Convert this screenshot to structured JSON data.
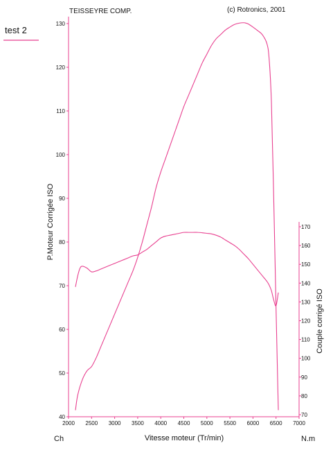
{
  "header": {
    "company": "TEISSEYRE COMP.",
    "copyright": "(c) Rotronics, 2001",
    "note": "test 2"
  },
  "colors": {
    "accent": "#e83f8f",
    "text": "#111111"
  },
  "chart_data": {
    "type": "line",
    "title": "",
    "xlabel": "Vitesse moteur (Tr/min)",
    "ylabel_left": "P.Moteur Corrigée ISO",
    "ylabel_right": "Couple corrigé ISO",
    "left_unit": "Ch",
    "right_unit": "N.m",
    "xlim": [
      2000,
      7000
    ],
    "ylim_left": [
      40,
      130
    ],
    "ylim_right": [
      70,
      170
    ],
    "x_ticks": [
      2000,
      2500,
      3000,
      3500,
      4000,
      4500,
      5000,
      5500,
      6000,
      6500,
      7000
    ],
    "left_ticks": [
      40,
      50,
      60,
      70,
      80,
      90,
      100,
      110,
      120,
      130
    ],
    "right_ticks": [
      70,
      80,
      90,
      100,
      110,
      120,
      130,
      140,
      150,
      160,
      170
    ],
    "grid": false,
    "series": [
      {
        "axis": "left",
        "x": [
          2150,
          2200,
          2300,
          2400,
          2500,
          2600,
          2700,
          2800,
          2900,
          3000,
          3100,
          3200,
          3300,
          3400,
          3500,
          3600,
          3700,
          3800,
          3900,
          4000,
          4100,
          4200,
          4300,
          4400,
          4500,
          4600,
          4700,
          4800,
          4900,
          5000,
          5100,
          5200,
          5300,
          5400,
          5500,
          5600,
          5700,
          5800,
          5850,
          5900,
          6000,
          6100,
          6200,
          6300,
          6350,
          6400,
          6450,
          6500,
          6550
        ],
        "values": [
          41.5,
          45,
          48.5,
          50.5,
          51.5,
          53.5,
          56,
          58.5,
          61,
          63.5,
          66,
          68.5,
          71,
          73.5,
          76.5,
          80,
          84,
          88,
          92.5,
          96,
          99,
          102,
          105,
          108,
          111,
          113.5,
          116,
          118.5,
          121,
          123,
          125,
          126.5,
          127.5,
          128.5,
          129.2,
          129.8,
          130.1,
          130.2,
          130.1,
          129.9,
          129.2,
          128.4,
          127.5,
          125.5,
          122,
          112,
          90,
          65,
          41.5
        ]
      },
      {
        "axis": "right",
        "x": [
          2150,
          2200,
          2250,
          2300,
          2400,
          2500,
          2600,
          2700,
          2800,
          2900,
          3000,
          3100,
          3200,
          3300,
          3400,
          3500,
          3600,
          3700,
          3800,
          3900,
          4000,
          4100,
          4200,
          4300,
          4400,
          4500,
          4600,
          4700,
          4800,
          4900,
          5000,
          5100,
          5200,
          5300,
          5400,
          5500,
          5600,
          5700,
          5800,
          5900,
          6000,
          6100,
          6200,
          6300,
          6350,
          6400,
          6450,
          6500,
          6550
        ],
        "values": [
          138,
          144,
          148,
          149,
          148,
          146,
          146.5,
          147.5,
          148.5,
          149.5,
          150.5,
          151.5,
          152.5,
          153.5,
          154.5,
          155,
          156.5,
          158,
          160,
          162,
          164,
          165,
          165.5,
          166,
          166.5,
          167,
          167,
          167,
          167,
          166.8,
          166.5,
          166.2,
          165.5,
          164.5,
          163,
          161.5,
          160,
          158,
          155.5,
          153,
          150,
          147,
          144,
          141,
          139,
          136,
          131,
          128,
          135
        ]
      }
    ]
  }
}
